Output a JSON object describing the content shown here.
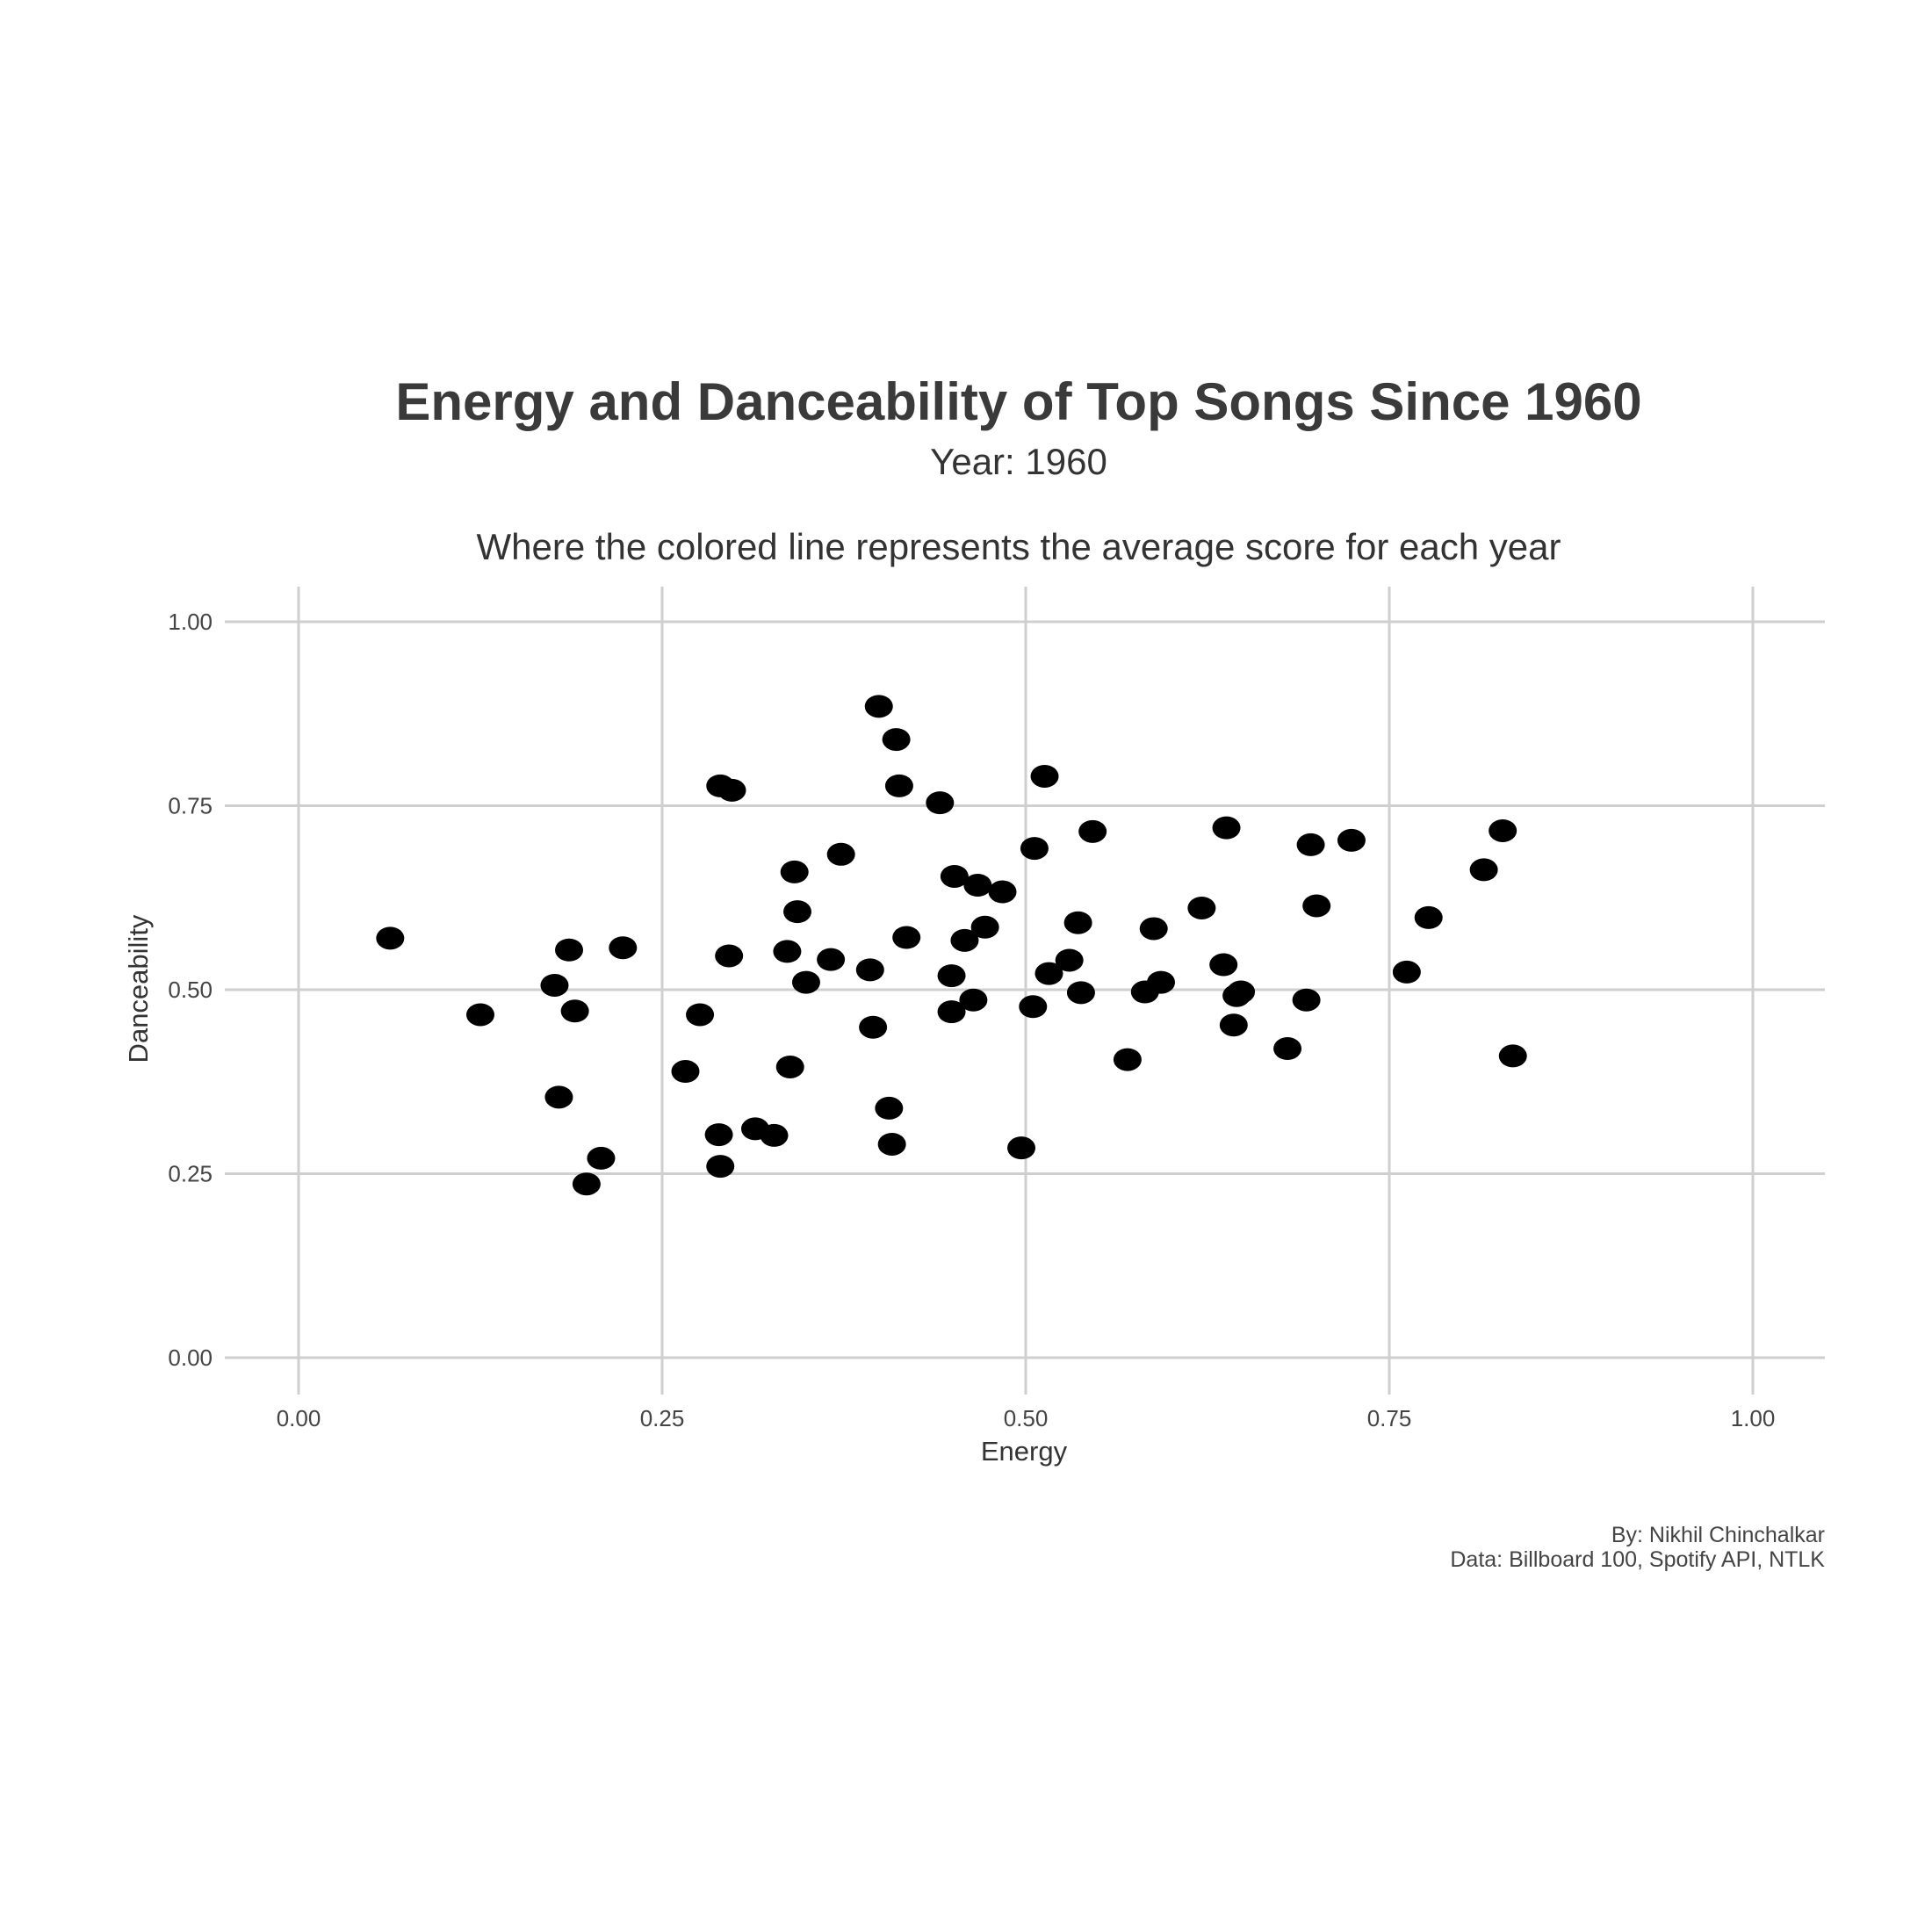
{
  "chart_data": {
    "type": "scatter",
    "title": "Energy and Danceability of Top Songs Since 1960",
    "subtitle": "Year: 1960",
    "note": "Where the colored line represents the average score for each year",
    "xlabel": "Energy",
    "ylabel": "Danceability",
    "xlim": [
      0,
      1
    ],
    "ylim": [
      0,
      1
    ],
    "x_ticks": [
      "0.00",
      "0.25",
      "0.50",
      "0.75",
      "1.00"
    ],
    "y_ticks": [
      "0.00",
      "0.25",
      "0.50",
      "0.75",
      "1.00"
    ],
    "grid": true,
    "legend": "none",
    "point_color": "#000000",
    "caption_lines": [
      "By: Nikhil Chinchalkar",
      "Data: Billboard 100, Spotify API, NTLK"
    ],
    "points": [
      [
        0.063,
        0.57
      ],
      [
        0.125,
        0.466
      ],
      [
        0.176,
        0.506
      ],
      [
        0.186,
        0.554
      ],
      [
        0.19,
        0.471
      ],
      [
        0.179,
        0.354
      ],
      [
        0.198,
        0.236
      ],
      [
        0.208,
        0.271
      ],
      [
        0.223,
        0.557
      ],
      [
        0.266,
        0.389
      ],
      [
        0.276,
        0.466
      ],
      [
        0.29,
        0.777
      ],
      [
        0.298,
        0.771
      ],
      [
        0.296,
        0.546
      ],
      [
        0.289,
        0.303
      ],
      [
        0.29,
        0.26
      ],
      [
        0.314,
        0.311
      ],
      [
        0.327,
        0.302
      ],
      [
        0.336,
        0.552
      ],
      [
        0.338,
        0.395
      ],
      [
        0.341,
        0.66
      ],
      [
        0.343,
        0.606
      ],
      [
        0.349,
        0.51
      ],
      [
        0.366,
        0.541
      ],
      [
        0.373,
        0.684
      ],
      [
        0.393,
        0.527
      ],
      [
        0.395,
        0.449
      ],
      [
        0.399,
        0.885
      ],
      [
        0.406,
        0.339
      ],
      [
        0.408,
        0.29
      ],
      [
        0.411,
        0.84
      ],
      [
        0.413,
        0.777
      ],
      [
        0.418,
        0.571
      ],
      [
        0.441,
        0.754
      ],
      [
        0.449,
        0.519
      ],
      [
        0.449,
        0.47
      ],
      [
        0.451,
        0.654
      ],
      [
        0.458,
        0.567
      ],
      [
        0.464,
        0.486
      ],
      [
        0.467,
        0.642
      ],
      [
        0.472,
        0.585
      ],
      [
        0.484,
        0.633
      ],
      [
        0.497,
        0.285
      ],
      [
        0.505,
        0.477
      ],
      [
        0.506,
        0.692
      ],
      [
        0.513,
        0.79
      ],
      [
        0.516,
        0.522
      ],
      [
        0.53,
        0.54
      ],
      [
        0.536,
        0.591
      ],
      [
        0.538,
        0.496
      ],
      [
        0.546,
        0.715
      ],
      [
        0.57,
        0.405
      ],
      [
        0.582,
        0.497
      ],
      [
        0.588,
        0.583
      ],
      [
        0.593,
        0.51
      ],
      [
        0.621,
        0.611
      ],
      [
        0.636,
        0.534
      ],
      [
        0.638,
        0.72
      ],
      [
        0.643,
        0.452
      ],
      [
        0.645,
        0.492
      ],
      [
        0.648,
        0.497
      ],
      [
        0.68,
        0.42
      ],
      [
        0.693,
        0.486
      ],
      [
        0.696,
        0.697
      ],
      [
        0.7,
        0.614
      ],
      [
        0.724,
        0.703
      ],
      [
        0.762,
        0.524
      ],
      [
        0.777,
        0.598
      ],
      [
        0.815,
        0.663
      ],
      [
        0.828,
        0.716
      ],
      [
        0.835,
        0.41
      ]
    ]
  }
}
